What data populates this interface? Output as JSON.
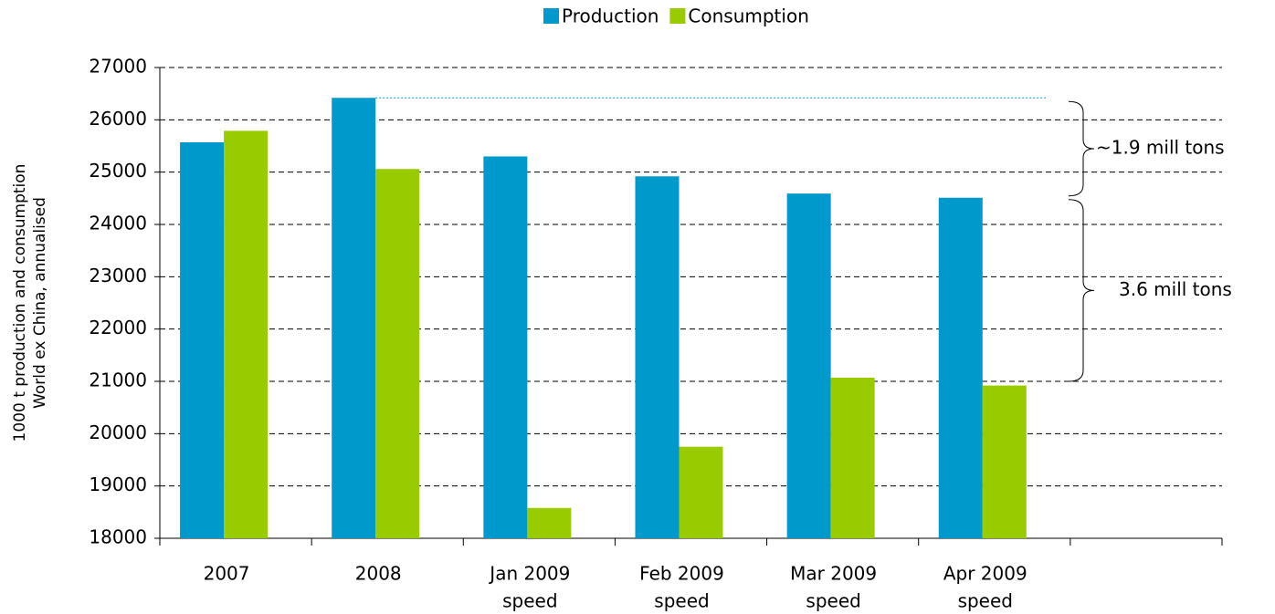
{
  "chart_data": {
    "type": "bar",
    "y_label": [
      "1000 t  production and consumption",
      "World ex China, annualised"
    ],
    "categories": [
      [
        "2007"
      ],
      [
        "2008"
      ],
      [
        "Jan 2009",
        "speed"
      ],
      [
        "Feb 2009",
        "speed"
      ],
      [
        "Mar 2009",
        "speed"
      ],
      [
        "Apr 2009",
        "speed"
      ],
      null
    ],
    "series": [
      {
        "name": "Production",
        "color": "#0099cc",
        "values": [
          25570,
          26420,
          25300,
          24920,
          24590,
          24510,
          null
        ]
      },
      {
        "name": "Consumption",
        "color": "#99cc00",
        "values": [
          25790,
          25060,
          18580,
          19750,
          21070,
          20920,
          null
        ]
      }
    ],
    "ylim": [
      18000,
      27000
    ],
    "yticks": [
      18000,
      19000,
      20000,
      21000,
      22000,
      23000,
      24000,
      25000,
      26000,
      27000
    ],
    "grid": true,
    "legend": "top",
    "annotations": [
      "~1.9 mill tons",
      "3.6 mill tons"
    ]
  }
}
